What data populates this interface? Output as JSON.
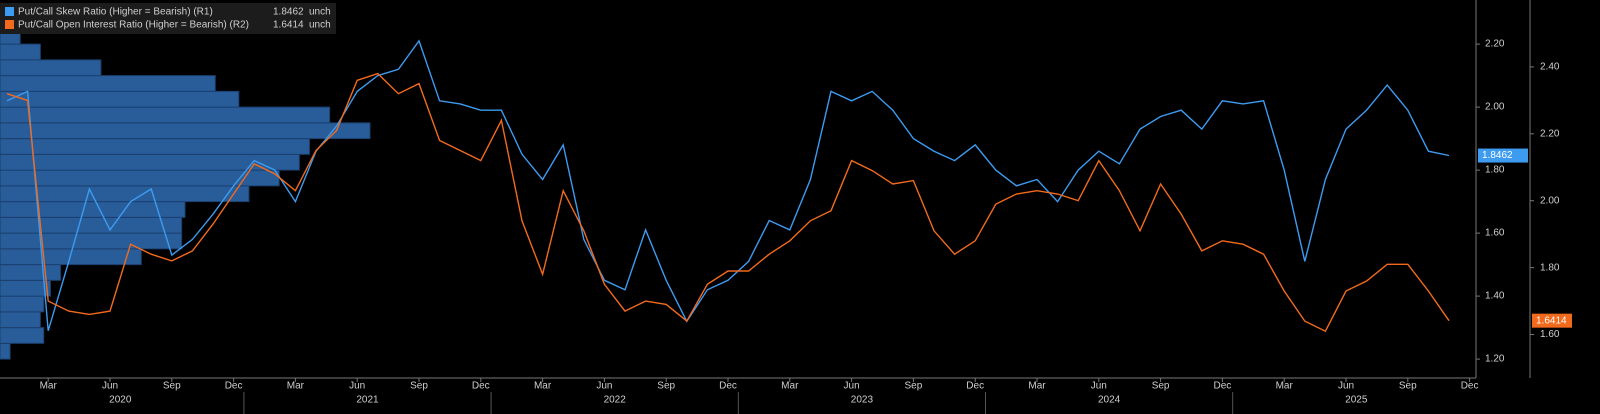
{
  "chart_data": {
    "type": "line",
    "x": [
      "2020-01",
      "2020-02",
      "2020-03",
      "2020-04",
      "2020-05",
      "2020-06",
      "2020-07",
      "2020-08",
      "2020-09",
      "2020-10",
      "2020-11",
      "2020-12",
      "2021-01",
      "2021-02",
      "2021-03",
      "2021-04",
      "2021-05",
      "2021-06",
      "2021-07",
      "2021-08",
      "2021-09",
      "2021-10",
      "2021-11",
      "2021-12",
      "2022-01",
      "2022-02",
      "2022-03",
      "2022-04",
      "2022-05",
      "2022-06",
      "2022-07",
      "2022-08",
      "2022-09",
      "2022-10",
      "2022-11",
      "2022-12",
      "2023-01",
      "2023-02",
      "2023-03",
      "2023-04",
      "2023-05",
      "2023-06",
      "2023-07",
      "2023-08",
      "2023-09",
      "2023-10",
      "2023-11",
      "2023-12",
      "2024-01",
      "2024-02",
      "2024-03",
      "2024-04",
      "2024-05",
      "2024-06",
      "2024-07",
      "2024-08",
      "2024-09",
      "2024-10",
      "2024-11",
      "2024-12",
      "2025-01",
      "2025-02",
      "2025-03",
      "2025-04",
      "2025-05",
      "2025-06",
      "2025-07",
      "2025-08",
      "2025-09",
      "2025-10",
      "2025-11"
    ],
    "series": [
      {
        "name": "Put/Call Skew Ratio (Higher = Bearish) (R1)",
        "color": "#3d9bf0",
        "change": "unch",
        "axis": "y",
        "values": [
          2.02,
          2.05,
          1.29,
          1.51,
          1.74,
          1.61,
          1.7,
          1.74,
          1.53,
          1.58,
          1.66,
          1.75,
          1.83,
          1.8,
          1.7,
          1.86,
          1.94,
          2.05,
          2.1,
          2.12,
          2.21,
          2.02,
          2.01,
          1.99,
          1.99,
          1.85,
          1.77,
          1.88,
          1.58,
          1.45,
          1.42,
          1.61,
          1.45,
          1.32,
          1.42,
          1.45,
          1.51,
          1.64,
          1.61,
          1.77,
          2.05,
          2.02,
          2.05,
          1.99,
          1.9,
          1.86,
          1.83,
          1.88,
          1.8,
          1.75,
          1.77,
          1.7,
          1.8,
          1.86,
          1.82,
          1.93,
          1.97,
          1.99,
          1.93,
          2.02,
          2.01,
          2.02,
          1.8,
          1.51,
          1.77,
          1.93,
          1.99,
          2.07,
          1.99,
          1.86,
          1.8462
        ]
      },
      {
        "name": "Put/Call Open Interest Ratio (Higher = Bearish) (R2)",
        "color": "#f26b1d",
        "change": "unch",
        "axis": "y2",
        "values": [
          2.32,
          2.3,
          1.7,
          1.67,
          1.66,
          1.67,
          1.87,
          1.84,
          1.82,
          1.85,
          1.93,
          2.02,
          2.11,
          2.08,
          2.03,
          2.15,
          2.21,
          2.36,
          2.38,
          2.32,
          2.35,
          2.18,
          2.15,
          2.12,
          2.24,
          1.94,
          1.78,
          2.03,
          1.91,
          1.75,
          1.67,
          1.7,
          1.69,
          1.64,
          1.75,
          1.79,
          1.79,
          1.84,
          1.88,
          1.94,
          1.97,
          2.12,
          2.09,
          2.05,
          2.06,
          1.91,
          1.84,
          1.88,
          1.99,
          2.02,
          2.03,
          2.02,
          2.0,
          2.12,
          2.03,
          1.91,
          2.05,
          1.96,
          1.85,
          1.88,
          1.87,
          1.84,
          1.73,
          1.64,
          1.61,
          1.73,
          1.76,
          1.81,
          1.81,
          1.73,
          1.6414
        ]
      }
    ],
    "ylim": [
      1.14,
      2.34
    ],
    "yticks": [
      {
        "value": 1.2,
        "label": "1.20"
      },
      {
        "value": 1.4,
        "label": "1.40"
      },
      {
        "value": 1.6,
        "label": "1.60"
      },
      {
        "value": 1.8,
        "label": "1.80"
      },
      {
        "value": 2.0,
        "label": "2.00"
      },
      {
        "value": 2.2,
        "label": "2.20"
      }
    ],
    "y2lim": [
      1.47,
      2.6
    ],
    "y2ticks": [
      {
        "value": 1.6,
        "label": "1.60"
      },
      {
        "value": 1.8,
        "label": "1.80"
      },
      {
        "value": 2.0,
        "label": "2.00"
      },
      {
        "value": 2.2,
        "label": "2.20"
      },
      {
        "value": 2.4,
        "label": "2.40"
      }
    ],
    "xticks": [
      {
        "value": "2020-03",
        "label": "Mar"
      },
      {
        "value": "2020-06",
        "label": "Jun"
      },
      {
        "value": "2020-09",
        "label": "Sep"
      },
      {
        "value": "2020-12",
        "label": "Dec"
      },
      {
        "value": "2021-03",
        "label": "Mar"
      },
      {
        "value": "2021-06",
        "label": "Jun"
      },
      {
        "value": "2021-09",
        "label": "Sep"
      },
      {
        "value": "2021-12",
        "label": "Dec"
      },
      {
        "value": "2022-03",
        "label": "Mar"
      },
      {
        "value": "2022-06",
        "label": "Jun"
      },
      {
        "value": "2022-09",
        "label": "Sep"
      },
      {
        "value": "2022-12",
        "label": "Dec"
      },
      {
        "value": "2023-03",
        "label": "Mar"
      },
      {
        "value": "2023-06",
        "label": "Jun"
      },
      {
        "value": "2023-09",
        "label": "Sep"
      },
      {
        "value": "2023-12",
        "label": "Dec"
      },
      {
        "value": "2024-03",
        "label": "Mar"
      },
      {
        "value": "2024-06",
        "label": "Jun"
      },
      {
        "value": "2024-09",
        "label": "Sep"
      },
      {
        "value": "2024-12",
        "label": "Dec"
      },
      {
        "value": "2025-03",
        "label": "Mar"
      },
      {
        "value": "2025-06",
        "label": "Jun"
      },
      {
        "value": "2025-09",
        "label": "Sep"
      },
      {
        "value": "2025-12",
        "label": "Dec"
      }
    ],
    "years": [
      "2020",
      "2021",
      "2022",
      "2023",
      "2024",
      "2025"
    ],
    "distribution": {
      "color": "#2f6db5",
      "bins": [
        1.2,
        1.25,
        1.3,
        1.35,
        1.4,
        1.45,
        1.5,
        1.55,
        1.6,
        1.65,
        1.7,
        1.75,
        1.8,
        1.85,
        1.9,
        1.95,
        2.0,
        2.05,
        2.1,
        2.15,
        2.2,
        2.25
      ],
      "counts": [
        3,
        13,
        12,
        13,
        15,
        18,
        42,
        54,
        54,
        55,
        74,
        83,
        89,
        92,
        110,
        98,
        71,
        64,
        30,
        12,
        6
      ]
    }
  }
}
